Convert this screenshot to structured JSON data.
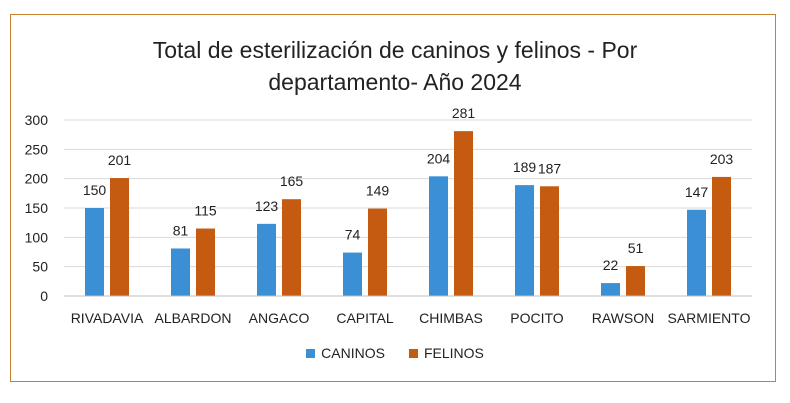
{
  "chart_data": {
    "type": "bar",
    "title_line1": "Total de esterilización de caninos y felinos - Por",
    "title_line2": "departamento- Año 2024",
    "categories": [
      "RIVADAVIA",
      "ALBARDON",
      "ANGACO",
      "CAPITAL",
      "CHIMBAS",
      "POCITO",
      "RAWSON",
      "SARMIENTO"
    ],
    "series": [
      {
        "name": "CANINOS",
        "color": "#3b8fd4",
        "values": [
          150,
          81,
          123,
          74,
          204,
          189,
          22,
          147
        ]
      },
      {
        "name": "FELINOS",
        "color": "#c55a11",
        "values": [
          201,
          115,
          165,
          149,
          281,
          187,
          51,
          203
        ]
      }
    ],
    "yticks": [
      0,
      50,
      100,
      150,
      200,
      250,
      300
    ],
    "ylim": [
      0,
      300
    ],
    "grid": true,
    "legend_position": "bottom"
  }
}
